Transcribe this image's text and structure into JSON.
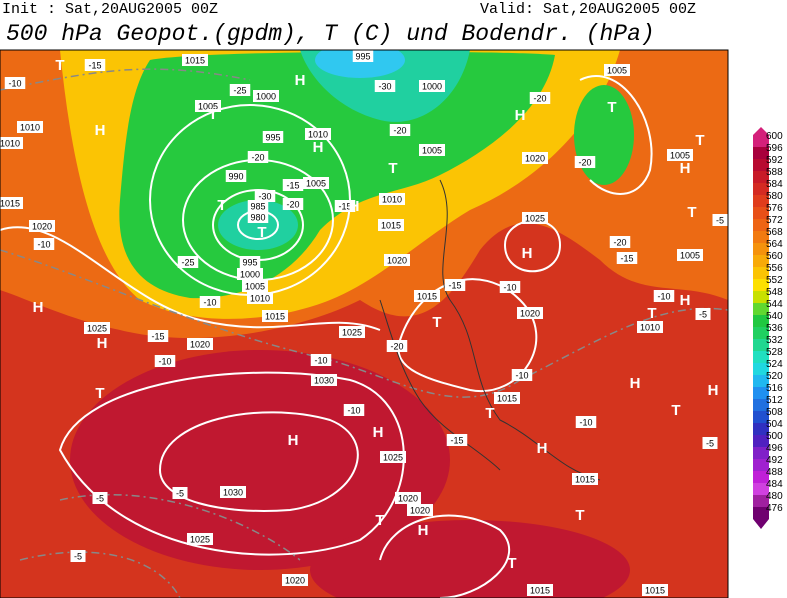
{
  "header": {
    "init": "Init : Sat,20AUG2005 00Z",
    "valid": "Valid: Sat,20AUG2005 00Z",
    "title": "500 hPa Geopot.(gpdm), T (C) und Bodendr. (hPa)"
  },
  "colorbar": {
    "labels": [
      600,
      596,
      592,
      588,
      584,
      580,
      576,
      572,
      568,
      564,
      560,
      556,
      552,
      548,
      544,
      540,
      536,
      532,
      528,
      524,
      520,
      516,
      512,
      508,
      504,
      500,
      496,
      492,
      488,
      484,
      480,
      476
    ],
    "colors": [
      "#d4207a",
      "#a8003c",
      "#b80a30",
      "#c81a28",
      "#d42a22",
      "#e03c1c",
      "#e85018",
      "#ee6414",
      "#f27a10",
      "#f5920c",
      "#f8aa08",
      "#fbc404",
      "#fde000",
      "#c8e000",
      "#60d830",
      "#20c840",
      "#20d060",
      "#20d890",
      "#20e0c0",
      "#20d8e0",
      "#20b8f0",
      "#2090f0",
      "#2070e0",
      "#2050d0",
      "#3030c0",
      "#5020c0",
      "#8020c8",
      "#a020d0",
      "#c020d8",
      "#d040e0",
      "#a020a0",
      "#700070"
    ]
  },
  "map": {
    "pressure_labels": [
      "1015",
      "995",
      "1000",
      "1005",
      "1005",
      "1000",
      "995",
      "1010",
      "1005",
      "1020",
      "990",
      "1005",
      "1010",
      "985",
      "980",
      "1015",
      "1025",
      "995",
      "1000",
      "1005",
      "1010",
      "1020",
      "1015",
      "1015",
      "1020",
      "1025",
      "1020",
      "1025",
      "1030",
      "1015",
      "1025",
      "1030",
      "1020",
      "1020",
      "1015",
      "1025",
      "1020",
      "1015",
      "1015",
      "1010",
      "1010",
      "1015",
      "1020",
      "1005",
      "1005",
      "1010"
    ],
    "temperature_labels": [
      "-15",
      "-10",
      "-25",
      "-20",
      "-30",
      "-20",
      "-20",
      "-20",
      "-30",
      "-15",
      "-20",
      "-25",
      "-15",
      "-10",
      "-15",
      "-10",
      "-20",
      "-15",
      "-10",
      "-15",
      "-10",
      "-20",
      "-10",
      "-10",
      "-10",
      "-15",
      "-10",
      "-5",
      "-5",
      "-5",
      "-5",
      "-5",
      "-10",
      "-5"
    ],
    "markers": [
      "T",
      "H",
      "H",
      "T",
      "H",
      "T",
      "T",
      "H",
      "T",
      "H",
      "T",
      "T",
      "H",
      "T",
      "H",
      "T",
      "H",
      "H",
      "T",
      "H",
      "T",
      "H",
      "H",
      "T",
      "H",
      "H",
      "T",
      "H",
      "T",
      "T",
      "H",
      "T"
    ]
  }
}
